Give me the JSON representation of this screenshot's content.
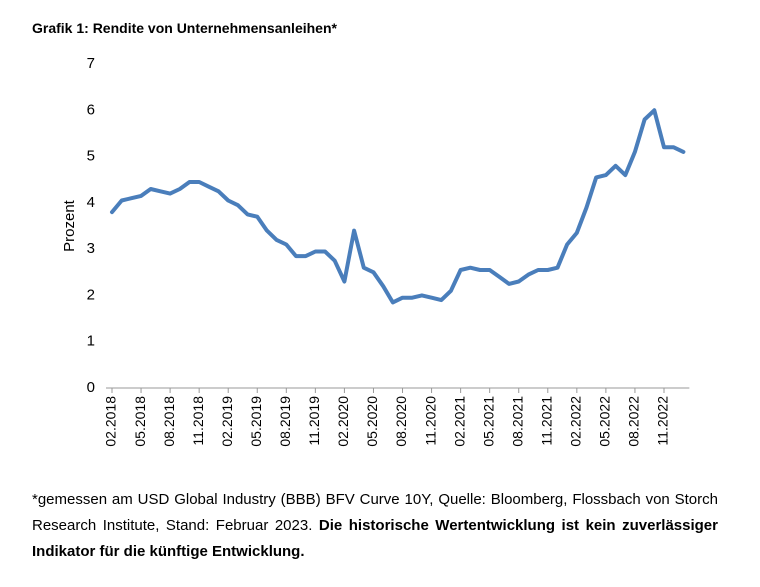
{
  "chart_data": {
    "type": "line",
    "title": "Grafik 1: Rendite von Unternehmensanleihen*",
    "y_label": "Prozent",
    "categories": [
      "02.2018",
      null,
      null,
      "05.2018",
      null,
      null,
      "08.2018",
      null,
      null,
      "11.2018",
      null,
      null,
      "02.2019",
      null,
      null,
      "05.2019",
      null,
      null,
      "08.2019",
      null,
      null,
      "11.2019",
      null,
      null,
      "02.2020",
      null,
      null,
      "05.2020",
      null,
      null,
      "08.2020",
      null,
      null,
      "11.2020",
      null,
      null,
      "02.2021",
      null,
      null,
      "05.2021",
      null,
      null,
      "08.2021",
      null,
      null,
      "11.2021",
      null,
      null,
      "02.2022",
      null,
      null,
      "05.2022",
      null,
      null,
      "08.2022",
      null,
      null,
      "11.2022",
      null,
      null
    ],
    "values": [
      3.8,
      4.05,
      4.1,
      4.15,
      4.3,
      4.25,
      4.2,
      4.3,
      4.45,
      4.45,
      4.35,
      4.25,
      4.05,
      3.95,
      3.75,
      3.7,
      3.4,
      3.2,
      3.1,
      2.85,
      2.85,
      2.95,
      2.95,
      2.75,
      2.3,
      3.4,
      2.6,
      2.5,
      2.2,
      1.85,
      1.95,
      1.95,
      2.0,
      1.95,
      1.9,
      2.1,
      2.55,
      2.6,
      2.55,
      2.55,
      2.4,
      2.25,
      2.3,
      2.45,
      2.55,
      2.55,
      2.6,
      3.1,
      3.35,
      3.9,
      4.55,
      4.6,
      4.8,
      4.6,
      5.1,
      5.8,
      6.0,
      5.2,
      5.2,
      5.1
    ],
    "color": "#4a7ebb",
    "ylim": [
      0,
      7
    ],
    "yticks": [
      0,
      1,
      2,
      3,
      4,
      5,
      6,
      7
    ],
    "grid": false,
    "footnote": "*gemessen am USD Global Industry (BBB) BFV Curve 10Y, Quelle: Bloomberg, Flossbach von Storch Research Institute, Stand: Februar 2023.",
    "footnote_emphasis": "Die historische Wertentwicklung ist kein zuverlässiger Indikator für die künftige Entwicklung."
  }
}
